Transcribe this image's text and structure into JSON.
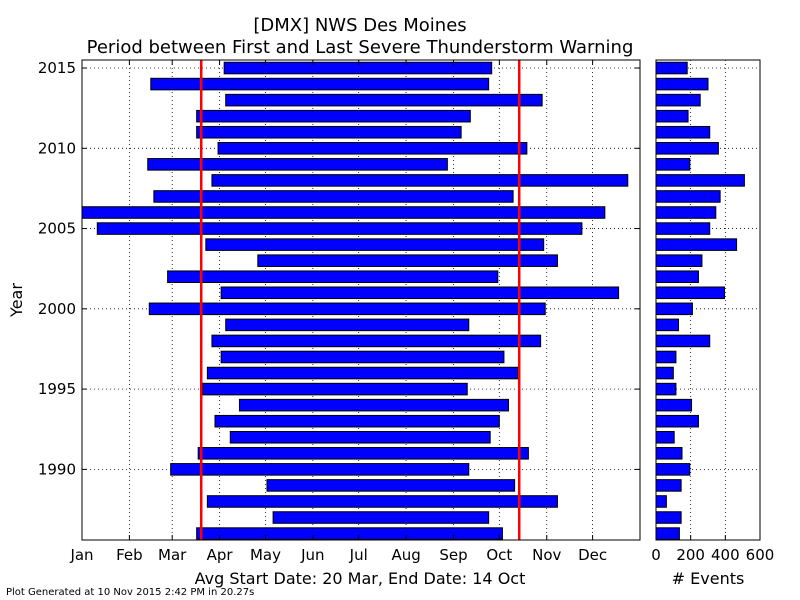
{
  "title_line1": "[DMX] NWS Des Moines",
  "title_line2": "Period between First and Last Severe Thunderstorm Warning",
  "footer": "Plot Generated at 10 Nov 2015 2:42 PM in 20.27s",
  "avg_label": "Avg Start Date: 20 Mar, End Date: 14 Oct",
  "colors": {
    "bar": "#0000ff",
    "avg_line": "#ff0000",
    "avg_text": "#ff0000"
  },
  "chart_data": [
    {
      "type": "bar",
      "orientation": "horizontal",
      "ylabel": "Year",
      "xlabel": "",
      "x_tick_labels": [
        "Jan",
        "Feb",
        "Mar",
        "Apr",
        "May",
        "Jun",
        "Jul",
        "Aug",
        "Sep",
        "Oct",
        "Nov",
        "Dec"
      ],
      "y_ticks": [
        1990,
        1995,
        2000,
        2005,
        2010,
        2015
      ],
      "ylim": [
        1985.6,
        2015.5
      ],
      "xlim_day_of_year": [
        1,
        366
      ],
      "grid": true,
      "avg_start": "20 Mar",
      "avg_end": "14 Oct",
      "series": [
        {
          "values": [
            {
              "year": 1986,
              "start": "17 Mar",
              "end": "3 Oct"
            },
            {
              "year": 1987,
              "start": "6 May",
              "end": "24 Sep"
            },
            {
              "year": 1988,
              "start": "24 Mar",
              "end": "8 Nov"
            },
            {
              "year": 1989,
              "start": "2 May",
              "end": "11 Oct"
            },
            {
              "year": 1990,
              "start": "28 Feb",
              "end": "11 Sep"
            },
            {
              "year": 1991,
              "start": "18 Mar",
              "end": "20 Oct"
            },
            {
              "year": 1992,
              "start": "8 Apr",
              "end": "25 Sep"
            },
            {
              "year": 1993,
              "start": "29 Mar",
              "end": "1 Oct"
            },
            {
              "year": 1994,
              "start": "14 Apr",
              "end": "7 Oct"
            },
            {
              "year": 1995,
              "start": "21 Mar",
              "end": "10 Sep"
            },
            {
              "year": 1996,
              "start": "24 Mar",
              "end": "13 Oct"
            },
            {
              "year": 1997,
              "start": "2 Apr",
              "end": "4 Oct"
            },
            {
              "year": 1998,
              "start": "27 Mar",
              "end": "28 Oct"
            },
            {
              "year": 1999,
              "start": "5 Apr",
              "end": "11 Sep"
            },
            {
              "year": 2000,
              "start": "14 Feb",
              "end": "31 Oct"
            },
            {
              "year": 2001,
              "start": "2 Apr",
              "end": "18 Dec"
            },
            {
              "year": 2002,
              "start": "26 Feb",
              "end": "30 Sep"
            },
            {
              "year": 2003,
              "start": "26 Apr",
              "end": "8 Nov"
            },
            {
              "year": 2004,
              "start": "23 Mar",
              "end": "30 Oct"
            },
            {
              "year": 2005,
              "start": "11 Jan",
              "end": "24 Nov"
            },
            {
              "year": 2006,
              "start": "1 Jan",
              "end": "9 Dec"
            },
            {
              "year": 2007,
              "start": "17 Feb",
              "end": "10 Oct"
            },
            {
              "year": 2008,
              "start": "27 Mar",
              "end": "24 Dec"
            },
            {
              "year": 2009,
              "start": "13 Feb",
              "end": "28 Aug"
            },
            {
              "year": 2010,
              "start": "31 Mar",
              "end": "19 Oct"
            },
            {
              "year": 2011,
              "start": "17 Mar",
              "end": "6 Sep"
            },
            {
              "year": 2012,
              "start": "17 Mar",
              "end": "12 Sep"
            },
            {
              "year": 2013,
              "start": "5 Apr",
              "end": "29 Oct"
            },
            {
              "year": 2014,
              "start": "15 Feb",
              "end": "24 Sep"
            },
            {
              "year": 2015,
              "start": "4 Apr",
              "end": "26 Sep"
            }
          ]
        }
      ]
    },
    {
      "type": "bar",
      "orientation": "horizontal",
      "xlabel": "# Events",
      "ylabel": "",
      "xlim": [
        0,
        600
      ],
      "x_ticks": [
        0,
        200,
        400,
        600
      ],
      "ylim": [
        1985.6,
        2015.5
      ],
      "grid": true,
      "series": [
        {
          "values": [
            {
              "year": 1986,
              "count": 135
            },
            {
              "year": 1987,
              "count": 145
            },
            {
              "year": 1988,
              "count": 60
            },
            {
              "year": 1989,
              "count": 145
            },
            {
              "year": 1990,
              "count": 195
            },
            {
              "year": 1991,
              "count": 150
            },
            {
              "year": 1992,
              "count": 105
            },
            {
              "year": 1993,
              "count": 245
            },
            {
              "year": 1994,
              "count": 205
            },
            {
              "year": 1995,
              "count": 115
            },
            {
              "year": 1996,
              "count": 100
            },
            {
              "year": 1997,
              "count": 115
            },
            {
              "year": 1998,
              "count": 310
            },
            {
              "year": 1999,
              "count": 130
            },
            {
              "year": 2000,
              "count": 210
            },
            {
              "year": 2001,
              "count": 395
            },
            {
              "year": 2002,
              "count": 245
            },
            {
              "year": 2003,
              "count": 265
            },
            {
              "year": 2004,
              "count": 465
            },
            {
              "year": 2005,
              "count": 310
            },
            {
              "year": 2006,
              "count": 345
            },
            {
              "year": 2007,
              "count": 370
            },
            {
              "year": 2008,
              "count": 510
            },
            {
              "year": 2009,
              "count": 195
            },
            {
              "year": 2010,
              "count": 360
            },
            {
              "year": 2011,
              "count": 310
            },
            {
              "year": 2012,
              "count": 185
            },
            {
              "year": 2013,
              "count": 255
            },
            {
              "year": 2014,
              "count": 300
            },
            {
              "year": 2015,
              "count": 180
            }
          ]
        }
      ]
    }
  ]
}
